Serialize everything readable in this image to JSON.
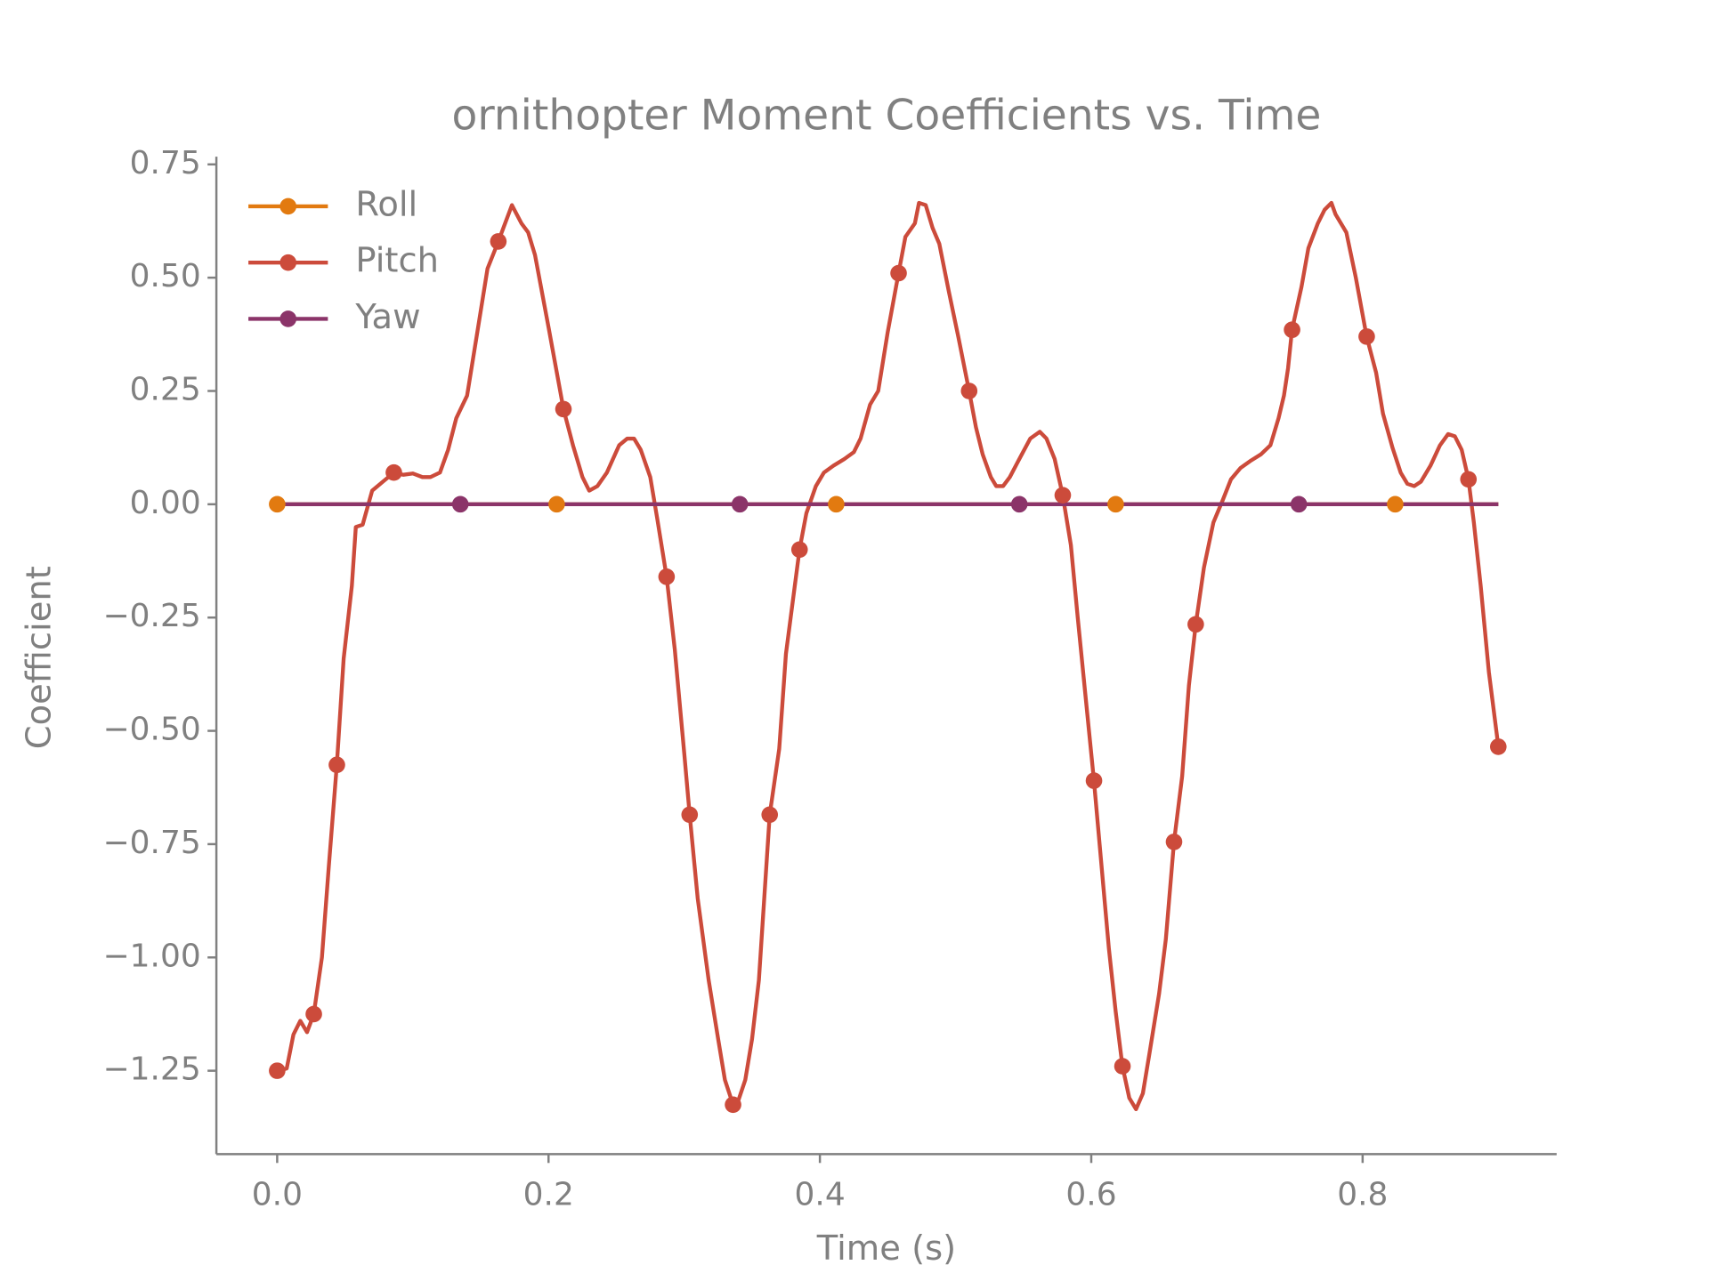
{
  "chart_data": {
    "type": "line",
    "title": "ornithopter Moment Coefficients vs. Time",
    "xlabel": "Time (s)",
    "ylabel": "Coefficient",
    "xlim": [
      -0.0448,
      0.943
    ],
    "ylim": [
      -1.434,
      0.767
    ],
    "xticks": [
      {
        "value": 0,
        "label": "0.0"
      },
      {
        "value": 0.2,
        "label": "0.2"
      },
      {
        "value": 0.4,
        "label": "0.4"
      },
      {
        "value": 0.6,
        "label": "0.6"
      },
      {
        "value": 0.8,
        "label": "0.8"
      }
    ],
    "yticks": [
      {
        "value": -1.25,
        "label": "−1.25"
      },
      {
        "value": -1,
        "label": "−1.00"
      },
      {
        "value": -0.75,
        "label": "−0.75"
      },
      {
        "value": -0.5,
        "label": "−0.50"
      },
      {
        "value": -0.25,
        "label": "−0.25"
      },
      {
        "value": 0,
        "label": "0.00"
      },
      {
        "value": 0.25,
        "label": "0.25"
      },
      {
        "value": 0.5,
        "label": "0.50"
      },
      {
        "value": 0.75,
        "label": "0.75"
      }
    ],
    "legend": "upper left",
    "series": [
      {
        "name": "Roll",
        "color": "#e27a10",
        "x": [
          0,
          0.206,
          0.412,
          0.618,
          0.824,
          0.9
        ],
        "values": [
          0,
          0,
          0,
          0,
          0,
          0
        ],
        "markevery": [
          0,
          1,
          2,
          3,
          4
        ]
      },
      {
        "name": "Pitch",
        "color": "#cc4b3b",
        "x": [
          0,
          0.007,
          0.012,
          0.017,
          0.022,
          0.027,
          0.033,
          0.038,
          0.044,
          0.049,
          0.055,
          0.058,
          0.063,
          0.07,
          0.078,
          0.086,
          0.093,
          0.1,
          0.107,
          0.113,
          0.12,
          0.126,
          0.132,
          0.14,
          0.147,
          0.155,
          0.163,
          0.173,
          0.18,
          0.185,
          0.19,
          0.2,
          0.211,
          0.218,
          0.225,
          0.23,
          0.236,
          0.243,
          0.252,
          0.258,
          0.263,
          0.268,
          0.275,
          0.28,
          0.287,
          0.293,
          0.3,
          0.304,
          0.31,
          0.318,
          0.325,
          0.33,
          0.336,
          0.34,
          0.345,
          0.35,
          0.355,
          0.363,
          0.37,
          0.375,
          0.385,
          0.39,
          0.397,
          0.403,
          0.41,
          0.418,
          0.425,
          0.43,
          0.437,
          0.443,
          0.45,
          0.458,
          0.463,
          0.47,
          0.473,
          0.478,
          0.483,
          0.488,
          0.495,
          0.502,
          0.51,
          0.515,
          0.52,
          0.526,
          0.53,
          0.535,
          0.54,
          0.547,
          0.555,
          0.562,
          0.567,
          0.573,
          0.579,
          0.585,
          0.59,
          0.595,
          0.602,
          0.607,
          0.613,
          0.618,
          0.623,
          0.628,
          0.633,
          0.638,
          0.643,
          0.65,
          0.655,
          0.661,
          0.667,
          0.672,
          0.677,
          0.683,
          0.69,
          0.697,
          0.703,
          0.71,
          0.717,
          0.725,
          0.732,
          0.738,
          0.742,
          0.745,
          0.748,
          0.755,
          0.76,
          0.767,
          0.772,
          0.777,
          0.78,
          0.788,
          0.795,
          0.803,
          0.81,
          0.815,
          0.822,
          0.828,
          0.833,
          0.838,
          0.843,
          0.85,
          0.857,
          0.863,
          0.868,
          0.873,
          0.878,
          0.882,
          0.887,
          0.893,
          0.9
        ],
        "values": [
          -1.25,
          -1.245,
          -1.17,
          -1.14,
          -1.165,
          -1.125,
          -1.0,
          -0.8,
          -0.575,
          -0.34,
          -0.18,
          -0.05,
          -0.045,
          0.03,
          0.05,
          0.07,
          0.065,
          0.068,
          0.06,
          0.06,
          0.07,
          0.12,
          0.19,
          0.24,
          0.37,
          0.52,
          0.58,
          0.66,
          0.62,
          0.6,
          0.55,
          0.39,
          0.21,
          0.13,
          0.06,
          0.03,
          0.04,
          0.07,
          0.13,
          0.145,
          0.145,
          0.12,
          0.06,
          -0.03,
          -0.16,
          -0.32,
          -0.55,
          -0.685,
          -0.87,
          -1.05,
          -1.18,
          -1.27,
          -1.325,
          -1.315,
          -1.27,
          -1.18,
          -1.05,
          -0.685,
          -0.54,
          -0.33,
          -0.1,
          -0.02,
          0.04,
          0.07,
          0.085,
          0.1,
          0.115,
          0.145,
          0.22,
          0.25,
          0.38,
          0.51,
          0.59,
          0.62,
          0.665,
          0.66,
          0.61,
          0.575,
          0.47,
          0.37,
          0.25,
          0.17,
          0.11,
          0.06,
          0.04,
          0.04,
          0.06,
          0.1,
          0.145,
          0.16,
          0.145,
          0.1,
          0.02,
          -0.09,
          -0.25,
          -0.4,
          -0.61,
          -0.78,
          -0.98,
          -1.12,
          -1.24,
          -1.31,
          -1.335,
          -1.3,
          -1.21,
          -1.08,
          -0.96,
          -0.745,
          -0.6,
          -0.4,
          -0.265,
          -0.14,
          -0.04,
          0.01,
          0.055,
          0.08,
          0.095,
          0.11,
          0.13,
          0.19,
          0.24,
          0.3,
          0.385,
          0.48,
          0.565,
          0.62,
          0.65,
          0.665,
          0.64,
          0.6,
          0.5,
          0.37,
          0.29,
          0.2,
          0.125,
          0.07,
          0.045,
          0.04,
          0.05,
          0.085,
          0.13,
          0.155,
          0.15,
          0.12,
          0.055,
          -0.04,
          -0.18,
          -0.37,
          -0.535
        ],
        "markevery": [
          0,
          5,
          8,
          15,
          26,
          32,
          44,
          47,
          52,
          57,
          60,
          71,
          80,
          92,
          96,
          100,
          107,
          110,
          122,
          131,
          144,
          148
        ]
      },
      {
        "name": "Yaw",
        "color": "#8b3469",
        "x": [
          0,
          0.135,
          0.341,
          0.547,
          0.753,
          0.9
        ],
        "values": [
          0,
          0,
          0,
          0,
          0,
          0
        ],
        "markevery": [
          1,
          2,
          3,
          4
        ]
      }
    ]
  }
}
